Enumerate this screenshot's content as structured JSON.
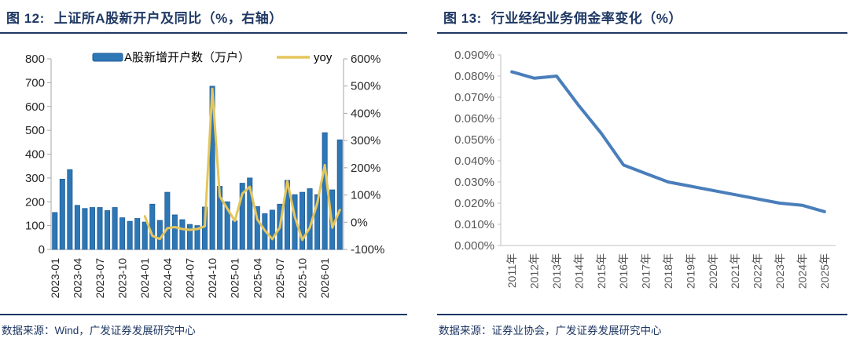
{
  "figure12": {
    "title_prefix": "图 12:",
    "title": "上证所A股新开户及同比（%，右轴）",
    "source": "数据来源：Wind，广发证券发展研究中心",
    "legend_bar": "A股新增开户数（万户）",
    "legend_line": "yoy"
  },
  "figure13": {
    "title_prefix": "图 13:",
    "title": "行业经纪业务佣金率变化（%）",
    "source": "数据来源：证券业协会，广发证券发展研究中心"
  },
  "colors": {
    "bar_fill": "#2E77B5",
    "bar_stroke": "#1D5C99",
    "yoy_line": "#E5C65C",
    "commission_line": "#4A7EBB",
    "navy": "#1F3864",
    "axis_grey": "#A6A6A6",
    "axis_grey_light": "#BFBFBF",
    "label_dark": "#262626",
    "label_grey": "#595959"
  },
  "chart_data": [
    {
      "type": "bar",
      "title": "上证所A股新开户及同比（%，右轴）",
      "categories": [
        "2023-01",
        "2023-02",
        "2023-03",
        "2023-04",
        "2023-05",
        "2023-06",
        "2023-07",
        "2023-08",
        "2023-09",
        "2023-10",
        "2023-11",
        "2023-12",
        "2024-01",
        "2024-02",
        "2024-03",
        "2024-04",
        "2024-05",
        "2024-06",
        "2024-07",
        "2024-08",
        "2024-09",
        "2024-10",
        "2024-11",
        "2024-12",
        "2025-01",
        "2025-02",
        "2025-03",
        "2025-04",
        "2025-05",
        "2025-06",
        "2025-07",
        "2025-08",
        "2025-09",
        "2025-10",
        "2025-11",
        "2025-12",
        "2026-01",
        "2026-02",
        "2026-03"
      ],
      "series": [
        {
          "name": "A股新增开户数（万户）",
          "type": "bar",
          "axis": "left",
          "values": [
            155,
            295,
            335,
            185,
            172,
            176,
            176,
            163,
            176,
            133,
            118,
            130,
            115,
            190,
            122,
            240,
            145,
            125,
            105,
            100,
            178,
            685,
            265,
            200,
            120,
            278,
            300,
            180,
            150,
            165,
            190,
            290,
            230,
            240,
            255,
            230,
            490,
            250,
            460
          ]
        },
        {
          "name": "yoy",
          "type": "line",
          "axis": "right",
          "start_index": 12,
          "values": [
            22,
            -50,
            -62,
            -22,
            -18,
            -25,
            -28,
            -25,
            -15,
            490,
            95,
            50,
            5,
            105,
            130,
            10,
            -30,
            -62,
            -20,
            150,
            20,
            -65,
            -20,
            70,
            210,
            -20,
            45
          ]
        }
      ],
      "left_axis": {
        "min": 0,
        "max": 800,
        "step": 100,
        "ticks": [
          "800",
          "700",
          "600",
          "500",
          "400",
          "300",
          "200",
          "100",
          "0"
        ]
      },
      "right_axis": {
        "min": -100,
        "max": 600,
        "step": 100,
        "ticks": [
          "600%",
          "500%",
          "400%",
          "300%",
          "200%",
          "100%",
          "0%",
          "-100%"
        ]
      },
      "x_tick_every": 3,
      "x_ticks": [
        "2023-01",
        "2023-04",
        "2023-07",
        "2023-10",
        "2024-01",
        "2024-04",
        "2024-07",
        "2024-10",
        "2025-01",
        "2025-04",
        "2025-07",
        "2025-10",
        "2026-01"
      ],
      "legend_position": "top",
      "grid": "off"
    },
    {
      "type": "line",
      "title": "行业经纪业务佣金率变化（%）",
      "categories": [
        "2011年",
        "2012年",
        "2013年",
        "2014年",
        "2015年",
        "2016年",
        "2017年",
        "2018年",
        "2019年",
        "2020年",
        "2021年",
        "2022年",
        "2023年",
        "2024年",
        "2025年"
      ],
      "values": [
        0.082,
        0.079,
        0.08,
        0.066,
        0.053,
        0.038,
        0.034,
        0.03,
        0.028,
        0.026,
        0.024,
        0.022,
        0.02,
        0.019,
        0.016
      ],
      "y_axis": {
        "min": 0.0,
        "max": 0.09,
        "step": 0.01,
        "ticks": [
          "0.090%",
          "0.080%",
          "0.070%",
          "0.060%",
          "0.050%",
          "0.040%",
          "0.030%",
          "0.020%",
          "0.010%",
          "0.000%"
        ]
      },
      "ylim": [
        0,
        0.09
      ],
      "legend_position": "none",
      "grid": "off"
    }
  ]
}
